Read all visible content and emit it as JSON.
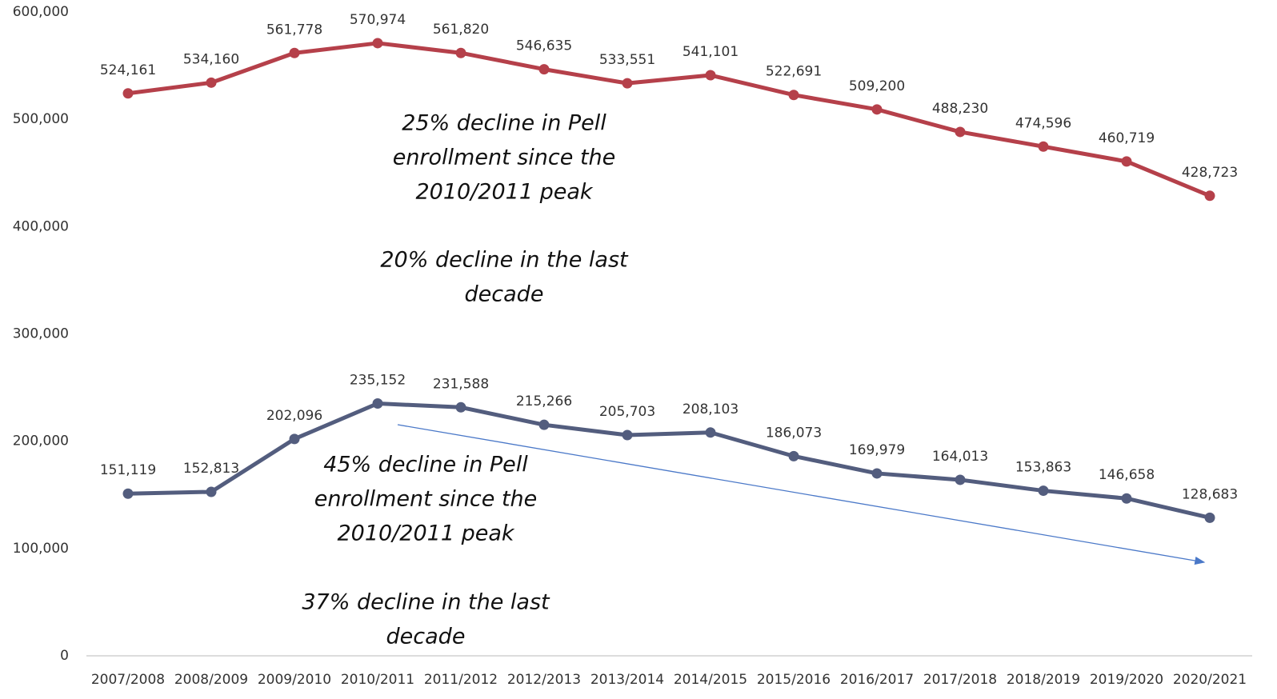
{
  "chart_data": {
    "type": "line",
    "categories": [
      "2007/2008",
      "2008/2009",
      "2009/2010",
      "2010/2011",
      "2011/2012",
      "2012/2013",
      "2013/2014",
      "2014/2015",
      "2015/2016",
      "2016/2017",
      "2017/2018",
      "2018/2019",
      "2019/2020",
      "2020/2021"
    ],
    "series": [
      {
        "color": "#b5404a",
        "values": [
          524161,
          534160,
          561778,
          570974,
          561820,
          546635,
          533551,
          541101,
          522691,
          509200,
          488230,
          474596,
          460719,
          428723
        ],
        "value_labels": [
          "524,161",
          "534,160",
          "561,778",
          "570,974",
          "561,820",
          "546,635",
          "533,551",
          "541,101",
          "522,691",
          "509,200",
          "488,230",
          "474,596",
          "460,719",
          "428,723"
        ]
      },
      {
        "color": "#535d7e",
        "values": [
          151119,
          152813,
          202096,
          235152,
          231588,
          215266,
          205703,
          208103,
          186073,
          169979,
          164013,
          153863,
          146658,
          128683
        ],
        "value_labels": [
          "151,119",
          "152,813",
          "202,096",
          "235,152",
          "231,588",
          "215,266",
          "205,703",
          "208,103",
          "186,073",
          "169,979",
          "164,013",
          "153,863",
          "146,658",
          "128,683"
        ]
      }
    ],
    "ylim": [
      0,
      600000
    ],
    "yticks": [
      0,
      {
        "value": 100000,
        "label": "100,000"
      },
      {
        "value": 200000,
        "label": "200,000"
      },
      {
        "value": 300000,
        "label": "300,000"
      },
      {
        "value": 400000,
        "label": "400,000"
      },
      {
        "value": 500000,
        "label": "500,000"
      },
      {
        "value": 600000,
        "label": "600,000"
      }
    ],
    "grid": false,
    "annotations": [
      [
        "25% decline in Pell",
        "enrollment since the",
        "2010/2011 peak"
      ],
      [
        "20% decline in the last",
        "decade"
      ],
      [
        "45% decline in Pell",
        "enrollment since the",
        "2010/2011 peak"
      ],
      [
        "37% decline in the last",
        "decade"
      ]
    ]
  }
}
